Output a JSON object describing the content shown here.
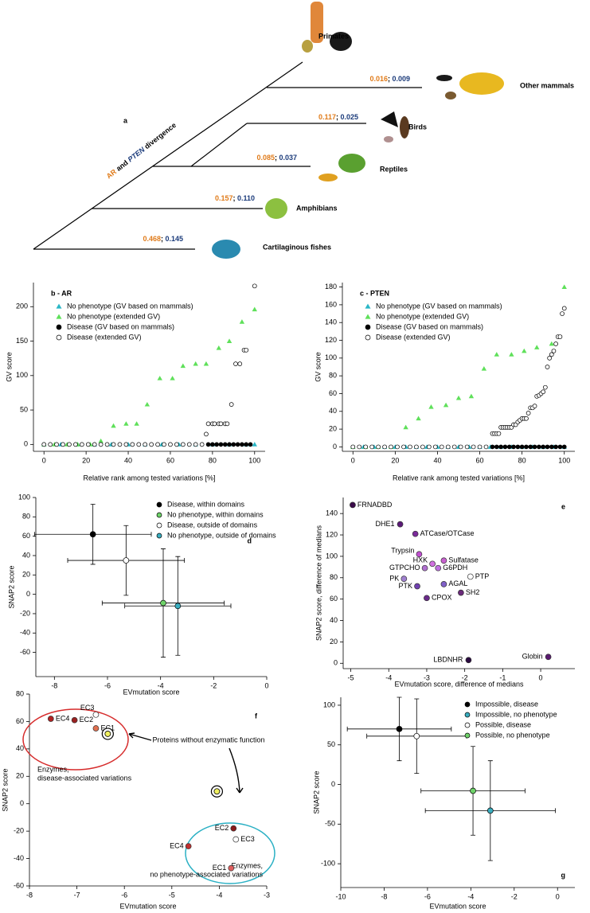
{
  "tree": {
    "panel": "a",
    "divergence": [
      "AR",
      " and ",
      "PTEN",
      " divergence"
    ],
    "separator": "; ",
    "groups": [
      {
        "name": "Primates"
      },
      {
        "name": "Other mammals",
        "ar": "0.016",
        "pten": "0.009"
      },
      {
        "name": "Birds",
        "ar": "0.117",
        "pten": "0.025"
      },
      {
        "name": "Reptiles",
        "ar": "0.085",
        "pten": "0.037"
      },
      {
        "name": "Amphibians",
        "ar": "0.157",
        "pten": "0.110"
      },
      {
        "name": "Cartilaginous fishes",
        "ar": "0.468",
        "pten": "0.145"
      }
    ]
  },
  "chart_data": [
    {
      "type": "scatter",
      "panel": "b - AR",
      "xlabel": "Relative rank among tested variations [%]",
      "ylabel": "GV score",
      "xlim": [
        -5,
        105
      ],
      "xticks": [
        0,
        20,
        40,
        60,
        80,
        100
      ],
      "ylim": [
        -10,
        235
      ],
      "yticks": [
        0,
        50,
        100,
        150,
        200
      ],
      "legend": "upper left",
      "series": [
        {
          "name": "No phenotype (GV based on mammals)",
          "marker": "triangle",
          "color": "#2ab7c6",
          "x": [
            0,
            8,
            16,
            24,
            32,
            40,
            48,
            56,
            64,
            72,
            80,
            88,
            96,
            100
          ],
          "values": [
            0,
            0,
            0,
            0,
            0,
            0,
            0,
            0,
            0,
            0,
            0,
            0,
            0,
            0
          ]
        },
        {
          "name": "No phenotype (extended GV)",
          "marker": "triangle",
          "color": "#5fe05a",
          "x": [
            0,
            5,
            11,
            16,
            22,
            27,
            33,
            39,
            44,
            49,
            55,
            61,
            66,
            72,
            77,
            83,
            88,
            94,
            100
          ],
          "values": [
            0,
            0,
            0,
            0,
            0,
            5,
            27,
            30,
            30,
            58,
            96,
            96,
            114,
            117,
            117,
            140,
            150,
            178,
            196
          ]
        },
        {
          "name": "Disease (GV based on mammals)",
          "marker": "circle",
          "color": "#000000",
          "x": [
            78,
            80,
            82,
            84,
            86,
            88,
            90,
            92,
            94,
            96,
            98
          ],
          "values": [
            0,
            0,
            0,
            0,
            0,
            0,
            0,
            0,
            0,
            0,
            0
          ]
        },
        {
          "name": "Disease (extended GV)",
          "marker": "circle",
          "color": "#ffffff",
          "edgecolor": "#000000",
          "x": [
            0,
            3,
            6,
            9,
            12,
            15,
            18,
            21,
            24,
            27,
            30,
            33,
            36,
            39,
            42,
            45,
            48,
            51,
            54,
            57,
            60,
            63,
            66,
            69,
            72,
            75,
            77,
            78,
            80,
            81,
            83,
            84,
            86,
            87,
            89,
            91,
            93,
            95,
            96,
            100
          ],
          "values": [
            0,
            0,
            0,
            0,
            0,
            0,
            0,
            0,
            0,
            0,
            0,
            0,
            0,
            0,
            0,
            0,
            0,
            0,
            0,
            0,
            0,
            0,
            0,
            0,
            0,
            0,
            15,
            30,
            30,
            30,
            30,
            30,
            30,
            30,
            58,
            117,
            117,
            137,
            137,
            230
          ]
        }
      ]
    },
    {
      "type": "scatter",
      "panel": "c - PTEN",
      "xlabel": "Relative rank among tested variations [%]",
      "ylabel": "GV score",
      "xlim": [
        -5,
        105
      ],
      "xticks": [
        0,
        20,
        40,
        60,
        80,
        100
      ],
      "ylim": [
        -5,
        185
      ],
      "yticks": [
        0,
        20,
        40,
        60,
        80,
        100,
        120,
        140,
        160,
        180
      ],
      "legend": "upper left",
      "series": [
        {
          "name": "No phenotype (GV based on mammals)",
          "marker": "triangle",
          "color": "#2ab7c6",
          "x": [
            0,
            5,
            10,
            15,
            20,
            25,
            30,
            35,
            40,
            45,
            50,
            55,
            60,
            65,
            70,
            75,
            80,
            85,
            90,
            95,
            100
          ],
          "values": [
            0,
            0,
            0,
            0,
            0,
            0,
            0,
            0,
            0,
            0,
            0,
            0,
            0,
            0,
            0,
            0,
            0,
            0,
            0,
            0,
            0
          ]
        },
        {
          "name": "No phenotype (extended GV)",
          "marker": "triangle",
          "color": "#5fe05a",
          "x": [
            0,
            6,
            12,
            18,
            25,
            31,
            37,
            44,
            50,
            56,
            62,
            68,
            75,
            81,
            87,
            94,
            100
          ],
          "values": [
            0,
            0,
            0,
            0,
            22,
            32,
            45,
            47,
            55,
            57,
            88,
            104,
            104,
            108,
            112,
            116,
            180
          ]
        },
        {
          "name": "Disease (GV based on mammals)",
          "marker": "circle",
          "color": "#000000",
          "x": [
            66,
            68,
            70,
            72,
            74,
            76,
            78,
            80,
            82,
            84,
            86,
            88,
            90,
            92,
            94,
            96,
            98,
            100
          ],
          "values": [
            0,
            0,
            0,
            0,
            0,
            0,
            0,
            0,
            0,
            0,
            0,
            0,
            0,
            0,
            0,
            0,
            0,
            0
          ]
        },
        {
          "name": "Disease (extended GV)",
          "marker": "circle",
          "color": "#ffffff",
          "edgecolor": "#000000",
          "x": [
            0,
            3,
            6,
            9,
            12,
            15,
            18,
            21,
            24,
            27,
            30,
            33,
            36,
            39,
            42,
            45,
            48,
            51,
            54,
            57,
            60,
            63,
            66,
            67,
            68,
            69,
            70,
            71,
            72,
            73,
            74,
            75,
            76,
            77,
            78,
            79,
            80,
            81,
            82,
            83,
            84,
            85,
            86,
            87,
            88,
            89,
            90,
            91,
            92,
            93,
            94,
            95,
            96,
            97,
            98,
            99,
            100
          ],
          "values": [
            0,
            0,
            0,
            0,
            0,
            0,
            0,
            0,
            0,
            0,
            0,
            0,
            0,
            0,
            0,
            0,
            0,
            0,
            0,
            0,
            0,
            0,
            15,
            15,
            15,
            15,
            22,
            22,
            22,
            22,
            22,
            22,
            25,
            25,
            28,
            30,
            32,
            32,
            32,
            38,
            44,
            44,
            46,
            57,
            58,
            60,
            62,
            67,
            90,
            100,
            104,
            108,
            116,
            124,
            124,
            150,
            156
          ]
        }
      ]
    },
    {
      "type": "errorbar",
      "panel": "d",
      "xlabel": "EVmutation score",
      "ylabel": "SNAP2 score",
      "xlim": [
        -8.7,
        0
      ],
      "xticks": [
        -8,
        -6,
        -4,
        -2,
        0
      ],
      "ylim": [
        -85,
        100
      ],
      "yticks": [
        -60,
        -40,
        -20,
        0,
        20,
        40,
        60,
        80,
        100
      ],
      "legend": "upper right",
      "series": [
        {
          "name": "Disease, within domains",
          "color": "#000000",
          "x": [
            -6.55
          ],
          "x_err": [
            2.2
          ],
          "values": [
            62
          ],
          "y_err": [
            31
          ]
        },
        {
          "name": "No phenotype, within domains",
          "color": "#6fd36a",
          "x": [
            -3.9
          ],
          "x_err": [
            2.3
          ],
          "values": [
            -9
          ],
          "y_err": [
            56
          ]
        },
        {
          "name": "Disease, outside of domains",
          "color": "#ffffff",
          "x": [
            -5.3
          ],
          "x_err": [
            2.2
          ],
          "values": [
            35
          ],
          "y_err": [
            36
          ]
        },
        {
          "name": "No phenotype, outside of domains",
          "color": "#3aaec0",
          "x": [
            -3.35
          ],
          "x_err": [
            2.0
          ],
          "values": [
            -12
          ],
          "y_err": [
            51
          ]
        }
      ]
    },
    {
      "type": "scatter",
      "panel": "e",
      "xlabel": "EVmutation score, difference of medians",
      "ylabel": "SNAP2 score, difference of medians",
      "xlim": [
        -5.2,
        0.9
      ],
      "xticks": [
        -5,
        -4,
        -3,
        -2,
        -1,
        0
      ],
      "ylim": [
        -5,
        155
      ],
      "yticks": [
        0,
        20,
        40,
        60,
        80,
        100,
        120,
        140
      ],
      "series": [
        {
          "marker": "circle",
          "edgecolor": "#333333",
          "labels": [
            "FRNADBD",
            "DHE1",
            "ATCase/OTCase",
            "Trypsin",
            "HXK",
            "Sulfatase",
            "GTPCHO",
            "G6PDH",
            "PTP",
            "PK",
            "PTK",
            "AGAL",
            "CPOX",
            "SH2",
            "LBDNHR",
            "Globin"
          ],
          "x": [
            -4.95,
            -3.7,
            -3.3,
            -3.2,
            -2.85,
            -2.55,
            -3.05,
            -2.7,
            -1.85,
            -3.6,
            -3.25,
            -2.55,
            -3.0,
            -2.1,
            -1.9,
            0.2
          ],
          "values": [
            148,
            130,
            121,
            102,
            93,
            96,
            89,
            89,
            81,
            79,
            72,
            74,
            61,
            66,
            3,
            6
          ],
          "colors": [
            "#3a0a4a",
            "#5b1a78",
            "#7b2a9a",
            "#c050d0",
            "#d070e0",
            "#c860d0",
            "#b070d0",
            "#c070e0",
            "#ffffff",
            "#a080d0",
            "#7040b0",
            "#8060c8",
            "#6a2a8a",
            "#6a2a7a",
            "#2a0a40",
            "#5a1a70"
          ]
        }
      ]
    },
    {
      "type": "scatter",
      "panel": "f",
      "xlabel": "EVmutation score",
      "ylabel": "SNAP2 score",
      "xlim": [
        -8,
        -3
      ],
      "xticks": [
        -8,
        -7,
        -6,
        -5,
        -4,
        -3
      ],
      "ylim": [
        -60,
        80
      ],
      "yticks": [
        -60,
        -40,
        -20,
        0,
        20,
        40,
        60,
        80
      ],
      "annotations": [
        {
          "lines": [
            "Enzymes,",
            "disease-associated variations"
          ],
          "color": "#d62b2b"
        },
        {
          "lines": [
            "Enzymes,",
            "no phenotype-associated variations"
          ],
          "color": "#2ab0c4"
        },
        {
          "lines": [
            "Proteins without enzymatic function"
          ],
          "color": "#000000"
        }
      ],
      "series": [
        {
          "marker": "circle",
          "edgecolor": "#333333",
          "labels": [
            "EC4",
            "EC2",
            "EC3",
            "EC1"
          ],
          "x": [
            -7.55,
            -7.05,
            -6.6,
            -6.6
          ],
          "values": [
            62,
            61,
            65,
            55
          ],
          "colors": [
            "#b02020",
            "#9a2020",
            "#ffffff",
            "#e07050"
          ]
        },
        {
          "marker": "ringed",
          "color": "#f0f060",
          "edgecolor": "#000000",
          "x": [
            -6.35,
            -4.05
          ],
          "values": [
            51,
            9
          ]
        },
        {
          "marker": "circle",
          "edgecolor": "#333333",
          "labels": [
            "EC2",
            "EC3",
            "EC4",
            "EC1"
          ],
          "x": [
            -3.7,
            -3.65,
            -4.65,
            -3.75
          ],
          "values": [
            -18,
            -26,
            -31,
            -47
          ],
          "colors": [
            "#8a1a1a",
            "#ffffff",
            "#c03030",
            "#e06060"
          ]
        }
      ]
    },
    {
      "type": "errorbar",
      "panel": "g",
      "xlabel": "EVmutation score",
      "ylabel": "SNAP2 score",
      "xlim": [
        -10,
        0.8
      ],
      "xticks": [
        -10,
        -8,
        -6,
        -4,
        -2,
        0
      ],
      "ylim": [
        -130,
        110
      ],
      "yticks": [
        -100,
        -50,
        0,
        50,
        100
      ],
      "legend": "upper right",
      "series": [
        {
          "name": "Impossible, disease",
          "color": "#000000",
          "x": [
            -7.3
          ],
          "x_err": [
            2.4
          ],
          "values": [
            70
          ],
          "y_err": [
            40
          ]
        },
        {
          "name": "Impossible, no phenotype",
          "color": "#3aaec0",
          "x": [
            -3.1
          ],
          "x_err": [
            3.0
          ],
          "values": [
            -33
          ],
          "y_err": [
            63
          ]
        },
        {
          "name": "Possible, disease",
          "color": "#ffffff",
          "x": [
            -6.5
          ],
          "x_err": [
            2.3
          ],
          "values": [
            61
          ],
          "y_err": [
            47
          ]
        },
        {
          "name": "Possible, no phenotype",
          "color": "#6fd36a",
          "x": [
            -3.9
          ],
          "x_err": [
            2.4
          ],
          "values": [
            -8
          ],
          "y_err": [
            56
          ]
        }
      ]
    }
  ]
}
